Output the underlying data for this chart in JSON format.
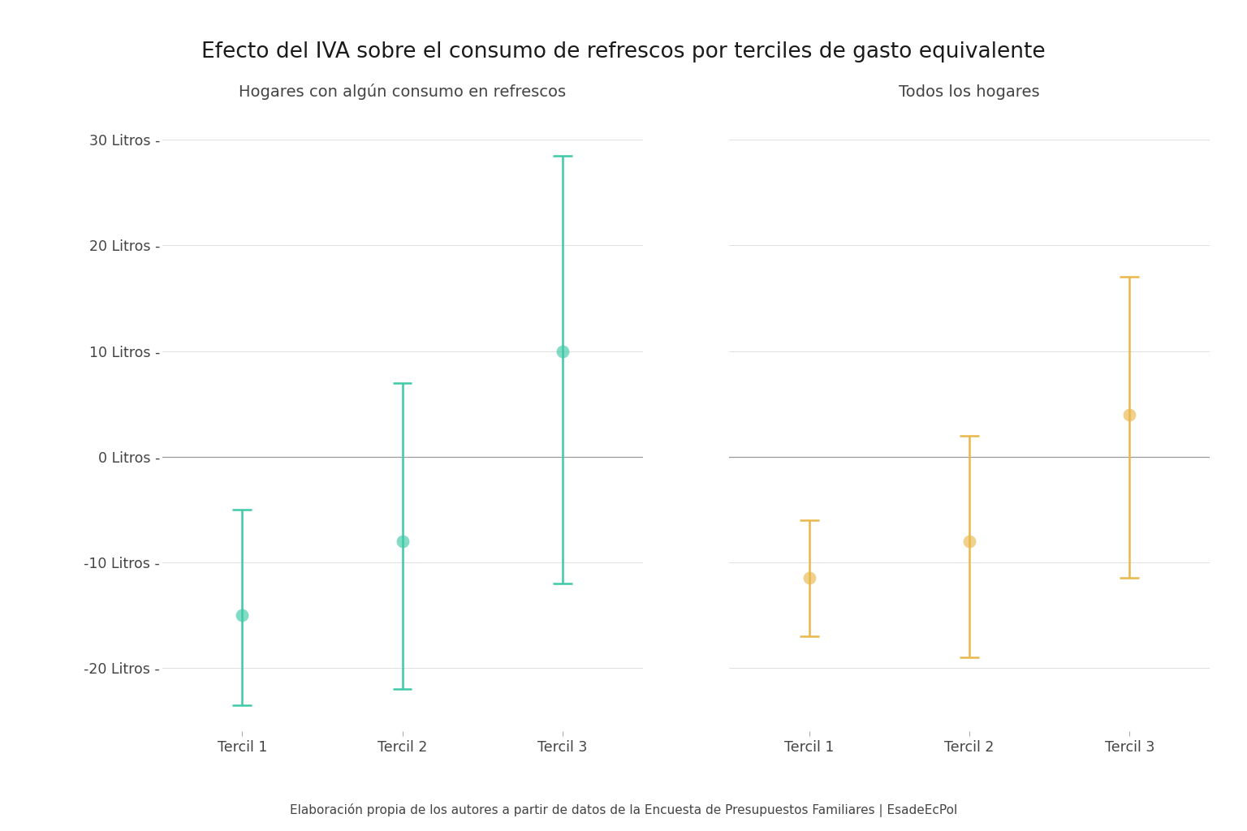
{
  "title": "Efecto del IVA sobre el consumo de refrescos por terciles de gasto equivalente",
  "subtitle_left": "Hogares con algún consumo en refrescos",
  "subtitle_right": "Todos los hogares",
  "footnote": "Elaboración propia de los autores a partir de datos de la Encuesta de Presupuestos Familiares | EsadeEcPol",
  "ytick_values": [
    30,
    20,
    10,
    0,
    -10,
    -20
  ],
  "ytick_labels": [
    "30 Litros -",
    "20 Litros -",
    "10 Litros -",
    "0 Litros -",
    "-10 Litros -",
    "-20 Litros -"
  ],
  "ylim": [
    -26,
    33
  ],
  "color_left": "#3EC9A7",
  "color_right": "#E8B84B",
  "left_panel": {
    "categories": [
      "Tercil 1",
      "Tercil 2",
      "Tercil 3"
    ],
    "centers": [
      -15.0,
      -8.0,
      10.0
    ],
    "ci_low": [
      -23.5,
      -22.0,
      -12.0
    ],
    "ci_high": [
      -5.0,
      7.0,
      28.5
    ]
  },
  "right_panel": {
    "categories": [
      "Tercil 1",
      "Tercil 2",
      "Tercil 3"
    ],
    "centers": [
      -11.5,
      -8.0,
      4.0
    ],
    "ci_low": [
      -17.0,
      -19.0,
      -11.5
    ],
    "ci_high": [
      -6.0,
      2.0,
      17.0
    ]
  },
  "bg_color": "#FFFFFF",
  "grid_color": "#E0E0E0",
  "zero_line_color": "#999999",
  "text_color": "#444444",
  "title_fontsize": 19,
  "subtitle_fontsize": 14,
  "tick_fontsize": 12.5,
  "footnote_fontsize": 11,
  "marker_size": 130,
  "linewidth": 1.8,
  "cap_halfwidth": 0.06
}
